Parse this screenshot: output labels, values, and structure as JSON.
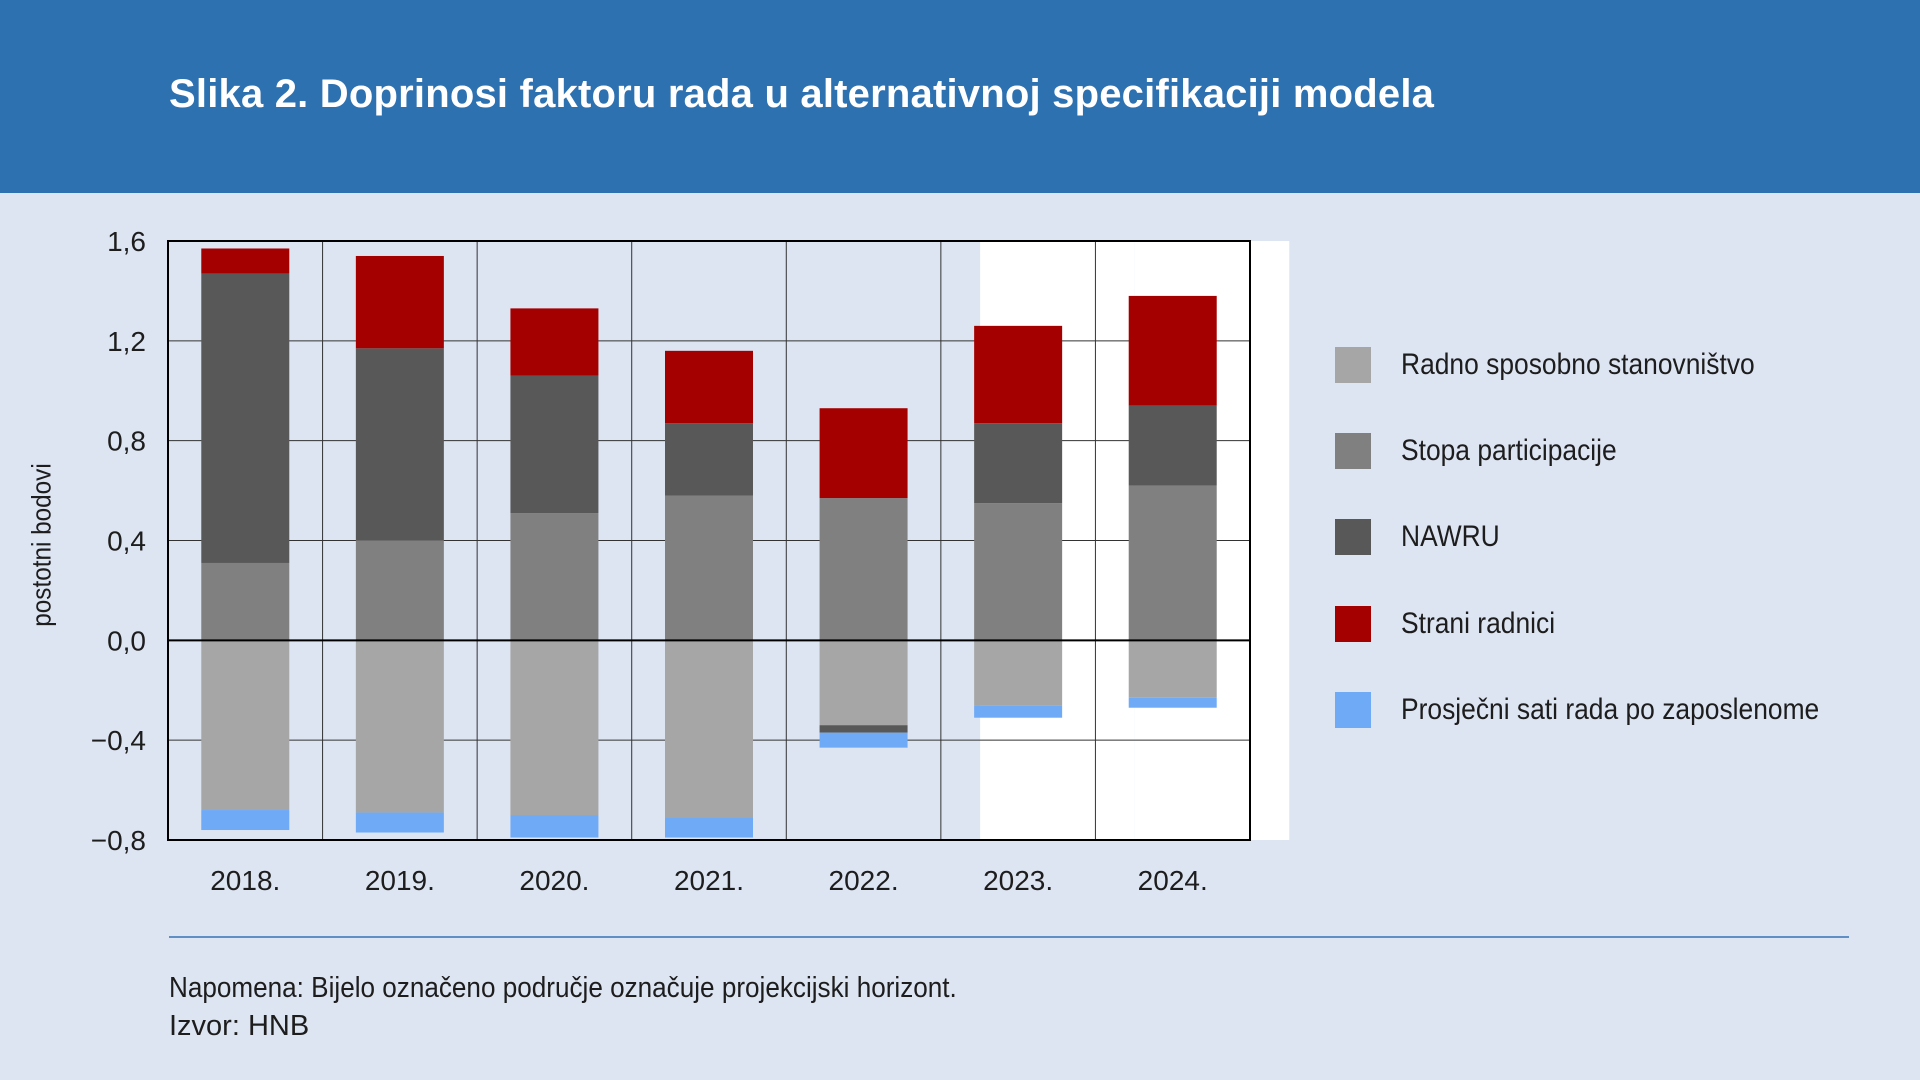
{
  "header": {
    "title": "Slika 2. Doprinosi faktoru rada u alternativnoj specifikaciji modela"
  },
  "colors": {
    "header_bg": "#2e71b1",
    "page_bg": "#dde4f2",
    "radno": "#a6a6a6",
    "stopa": "#808080",
    "nawru": "#585858",
    "strani": "#a50000",
    "sati": "#6eaaf5",
    "projection": "#ffffff"
  },
  "chart_data": {
    "type": "bar",
    "stacked": true,
    "ylabel": "postotni bodovi",
    "ylim": [
      -0.8,
      1.6
    ],
    "yticks": [
      -0.8,
      -0.4,
      0.0,
      0.4,
      0.8,
      1.2,
      1.6
    ],
    "ytick_labels": [
      "−0,8",
      "−0,4",
      "0,0",
      "0,4",
      "0,8",
      "1,2",
      "1,6"
    ],
    "categories": [
      "2018.",
      "2019.",
      "2020.",
      "2021.",
      "2022.",
      "2023.",
      "2024."
    ],
    "projection_categories": [
      "2023.",
      "2024."
    ],
    "series": [
      {
        "name": "Radno sposobno stanovništvo",
        "color_key": "radno",
        "values": [
          -0.68,
          -0.69,
          -0.7,
          -0.71,
          -0.34,
          -0.26,
          -0.23
        ]
      },
      {
        "name": "Stopa participacije",
        "color_key": "stopa",
        "values": [
          0.31,
          0.4,
          0.51,
          0.58,
          0.57,
          0.55,
          0.62
        ]
      },
      {
        "name": "NAWRU",
        "color_key": "nawru",
        "values": [
          1.16,
          0.77,
          0.55,
          0.29,
          -0.03,
          0.32,
          0.32
        ]
      },
      {
        "name": "Strani radnici",
        "color_key": "strani",
        "values": [
          0.1,
          0.37,
          0.27,
          0.29,
          0.36,
          0.39,
          0.44
        ]
      },
      {
        "name": "Prosječni sati rada po zaposlenome",
        "color_key": "sati",
        "values": [
          -0.08,
          -0.08,
          -0.09,
          -0.08,
          -0.06,
          -0.05,
          -0.04
        ]
      }
    ],
    "legend_position": "right"
  },
  "footer": {
    "note": "Napomena: Bijelo označeno područje označuje projekcijski horizont.",
    "source": "Izvor: HNB"
  }
}
